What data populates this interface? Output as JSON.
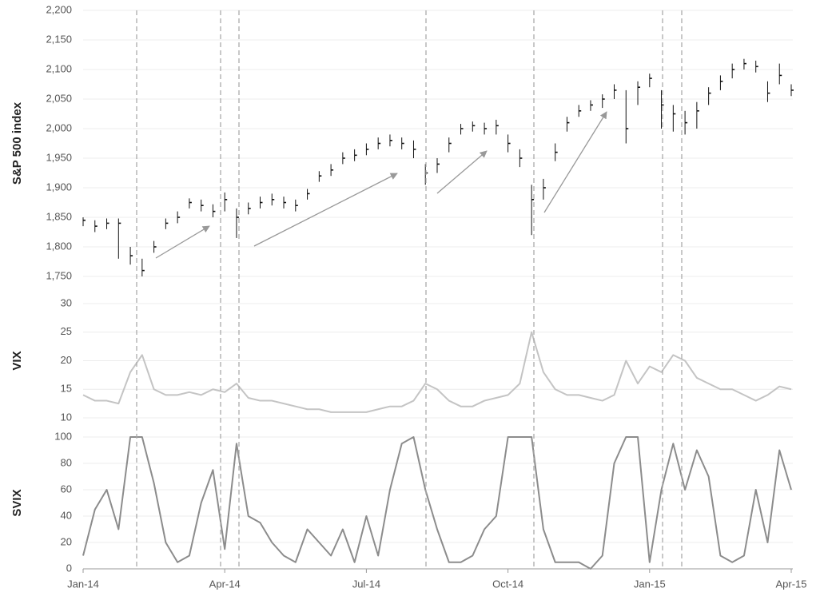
{
  "chart_data": {
    "type": "panels",
    "x": [
      0,
      0.25,
      0.5,
      0.75,
      1,
      1.25,
      1.5,
      1.75,
      2,
      2.25,
      2.5,
      2.75,
      3,
      3.25,
      3.5,
      3.75,
      4,
      4.25,
      4.5,
      4.75,
      5,
      5.25,
      5.5,
      5.75,
      6,
      6.25,
      6.5,
      6.75,
      7,
      7.25,
      7.5,
      7.75,
      8,
      8.25,
      8.5,
      8.75,
      9,
      9.25,
      9.5,
      9.75,
      10,
      10.25,
      10.5,
      10.75,
      11,
      11.25,
      11.5,
      11.75,
      12,
      12.25,
      12.5,
      12.75,
      13,
      13.25,
      13.5,
      13.75,
      14,
      14.25,
      14.5,
      14.75,
      15
    ],
    "xlim": [
      0,
      15
    ],
    "xticks": [
      {
        "value": 0,
        "label": "Jan-14"
      },
      {
        "value": 3,
        "label": "Apr-14"
      },
      {
        "value": 6,
        "label": "Jul-14"
      },
      {
        "value": 9,
        "label": "Oct-14"
      },
      {
        "value": 12,
        "label": "Jan-15"
      },
      {
        "value": 15,
        "label": "Apr-15"
      }
    ],
    "grid": true,
    "panels": [
      {
        "type": "ohlc",
        "ylabel": "S&P 500 index",
        "color": "#111111",
        "ylim": [
          1750,
          2200
        ],
        "yticks": [
          {
            "value": 1750,
            "label": "1,750"
          },
          {
            "value": 1800,
            "label": "1,800"
          },
          {
            "value": 1850,
            "label": "1,850"
          },
          {
            "value": 1900,
            "label": "1,900"
          },
          {
            "value": 1950,
            "label": "1,950"
          },
          {
            "value": 2000,
            "label": "2,000"
          },
          {
            "value": 2050,
            "label": "2,050"
          },
          {
            "value": 2100,
            "label": "2,100"
          },
          {
            "value": 2150,
            "label": "2,150"
          },
          {
            "value": 2200,
            "label": "2,200"
          }
        ],
        "close": [
          1845,
          1835,
          1840,
          1840,
          1785,
          1760,
          1800,
          1840,
          1850,
          1875,
          1870,
          1860,
          1880,
          1850,
          1865,
          1875,
          1880,
          1875,
          1870,
          1890,
          1920,
          1930,
          1950,
          1955,
          1965,
          1975,
          1980,
          1975,
          1965,
          1925,
          1940,
          1975,
          2000,
          2005,
          2000,
          2005,
          1975,
          1950,
          1880,
          1900,
          1960,
          2010,
          2030,
          2040,
          2050,
          2065,
          2000,
          2070,
          2085,
          2040,
          2025,
          2010,
          2030,
          2060,
          2080,
          2100,
          2110,
          2105,
          2060,
          2090,
          2065
        ],
        "high": [
          1850,
          1845,
          1848,
          1848,
          1800,
          1780,
          1810,
          1848,
          1860,
          1882,
          1880,
          1872,
          1892,
          1865,
          1875,
          1885,
          1890,
          1885,
          1880,
          1898,
          1928,
          1940,
          1960,
          1965,
          1975,
          1985,
          1990,
          1985,
          1980,
          1940,
          1950,
          1985,
          2008,
          2012,
          2010,
          2015,
          1990,
          1965,
          1905,
          1915,
          1975,
          2020,
          2040,
          2048,
          2058,
          2075,
          2065,
          2080,
          2093,
          2065,
          2040,
          2030,
          2045,
          2070,
          2090,
          2110,
          2118,
          2115,
          2080,
          2110,
          2075
        ],
        "low": [
          1835,
          1825,
          1830,
          1780,
          1770,
          1750,
          1790,
          1830,
          1840,
          1865,
          1860,
          1850,
          1860,
          1815,
          1855,
          1865,
          1870,
          1865,
          1860,
          1880,
          1910,
          1920,
          1940,
          1945,
          1955,
          1965,
          1970,
          1965,
          1950,
          1905,
          1925,
          1960,
          1990,
          1995,
          1990,
          1990,
          1960,
          1935,
          1820,
          1880,
          1945,
          1995,
          2020,
          2030,
          2035,
          2050,
          1975,
          2040,
          2070,
          2000,
          1995,
          1990,
          2000,
          2040,
          2065,
          2085,
          2100,
          2095,
          2045,
          2075,
          2055
        ]
      },
      {
        "type": "line",
        "ylabel": "VIX",
        "color": "#c4c4c4",
        "ylim": [
          10,
          30
        ],
        "yticks": [
          10,
          15,
          20,
          25,
          30
        ],
        "values": [
          14,
          13,
          13,
          12.5,
          18,
          21,
          15,
          14,
          14,
          14.5,
          14,
          15,
          14.5,
          16,
          13.5,
          13,
          13,
          12.5,
          12,
          11.5,
          11.5,
          11,
          11,
          11,
          11,
          11.5,
          12,
          12,
          13,
          16,
          15,
          13,
          12,
          12,
          13,
          13.5,
          14,
          16,
          25,
          18,
          15,
          14,
          14,
          13.5,
          13,
          14,
          20,
          16,
          19,
          18,
          21,
          20,
          17,
          16,
          15,
          15,
          14,
          13,
          14,
          15.5,
          15
        ]
      },
      {
        "type": "line",
        "ylabel": "SVIX",
        "color": "#8c8c8c",
        "ylim": [
          0,
          100
        ],
        "yticks": [
          0,
          20,
          40,
          60,
          80,
          100
        ],
        "values": [
          10,
          45,
          60,
          30,
          100,
          100,
          65,
          20,
          5,
          10,
          50,
          75,
          15,
          95,
          40,
          35,
          20,
          10,
          5,
          30,
          20,
          10,
          30,
          5,
          40,
          10,
          60,
          95,
          100,
          60,
          30,
          5,
          5,
          10,
          30,
          40,
          100,
          100,
          100,
          30,
          5,
          5,
          5,
          0,
          10,
          80,
          100,
          100,
          5,
          60,
          95,
          60,
          90,
          70,
          10,
          5,
          10,
          60,
          20,
          90,
          60
        ]
      }
    ]
  }
}
